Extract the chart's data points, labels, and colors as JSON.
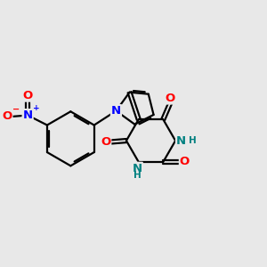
{
  "bg_color": "#e8e8e8",
  "bond_color": "#000000",
  "N_color": "#0000ff",
  "O_color": "#ff0000",
  "NH_color": "#008080",
  "lw": 1.6,
  "fs": 9.5,
  "sfs": 7.5,
  "xlim": [
    0,
    10
  ],
  "ylim": [
    0,
    10
  ],
  "fig_width": 3.0,
  "fig_height": 3.0,
  "dpi": 100
}
